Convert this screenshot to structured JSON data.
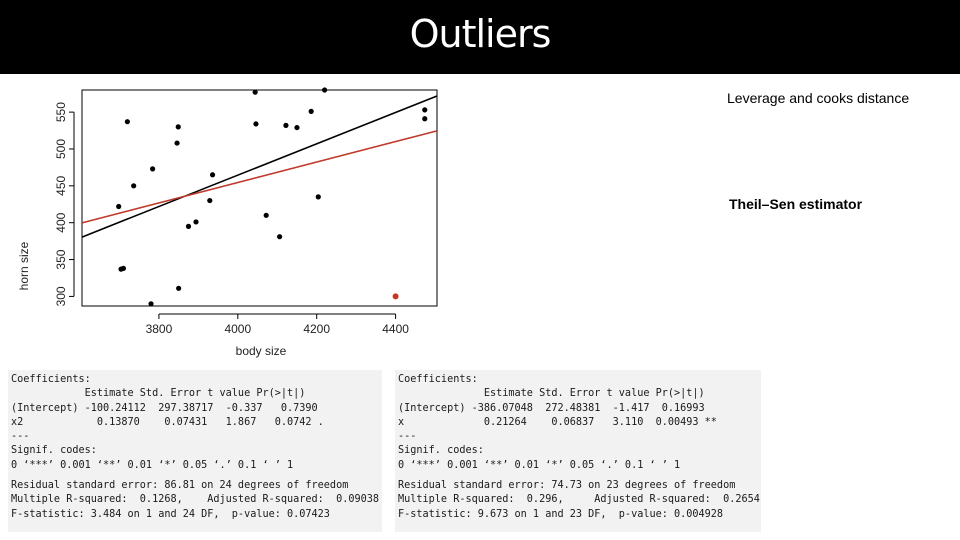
{
  "slide": {
    "title": "Outliers",
    "notes": [
      "Leverage and cooks distance",
      "Theil–Sen estimator"
    ]
  },
  "colors": {
    "points": "#000000",
    "outlier": "#cc3322",
    "ols_line": "#000000",
    "robust_line": "#c0392b",
    "title_bar": "#000000"
  },
  "chart_data": {
    "type": "scatter",
    "title": "",
    "xlabel": "body size",
    "ylabel": "horn size",
    "xlim": [
      3605,
      4505
    ],
    "ylim": [
      287,
      580
    ],
    "xticks": [
      3800,
      4000,
      4200,
      4400
    ],
    "yticks": [
      300,
      350,
      400,
      450,
      500,
      550
    ],
    "grid": false,
    "points": [
      {
        "x": 3698,
        "y": 422
      },
      {
        "x": 3704,
        "y": 337
      },
      {
        "x": 3710,
        "y": 338
      },
      {
        "x": 3720,
        "y": 537
      },
      {
        "x": 3736,
        "y": 450
      },
      {
        "x": 3780,
        "y": 290
      },
      {
        "x": 3784,
        "y": 473
      },
      {
        "x": 3846,
        "y": 508
      },
      {
        "x": 3849,
        "y": 530
      },
      {
        "x": 3850,
        "y": 311
      },
      {
        "x": 3875,
        "y": 395
      },
      {
        "x": 3894,
        "y": 401
      },
      {
        "x": 3929,
        "y": 430
      },
      {
        "x": 3936,
        "y": 465
      },
      {
        "x": 4044,
        "y": 577
      },
      {
        "x": 4046,
        "y": 534
      },
      {
        "x": 4072,
        "y": 410
      },
      {
        "x": 4106,
        "y": 381
      },
      {
        "x": 4122,
        "y": 532
      },
      {
        "x": 4150,
        "y": 529
      },
      {
        "x": 4186,
        "y": 551
      },
      {
        "x": 4204,
        "y": 435
      },
      {
        "x": 4220,
        "y": 580
      },
      {
        "x": 4474,
        "y": 553
      },
      {
        "x": 4474,
        "y": 541
      }
    ],
    "outliers": [
      {
        "x": 4400,
        "y": 300
      }
    ],
    "lines": [
      {
        "kind": "ols",
        "intercept": -386.07048,
        "slope": 0.21264
      },
      {
        "kind": "robust",
        "intercept": -100.24112,
        "slope": 0.1387
      }
    ]
  },
  "regression_left": {
    "lines": [
      "Coefficients:",
      "            Estimate Std. Error t value Pr(>|t|)",
      "(Intercept) -100.24112  297.38717  -0.337   0.7390",
      "x2            0.13870    0.07431   1.867   0.0742 .",
      "---",
      "Signif. codes:",
      "0 ‘***’ 0.001 ‘**’ 0.01 ‘*’ 0.05 ‘.’ 0.1 ‘ ’ 1",
      "",
      "Residual standard error: 86.81 on 24 degrees of freedom",
      "Multiple R-squared:  0.1268,    Adjusted R-squared:  0.09038",
      "F-statistic: 3.484 on 1 and 24 DF,  p-value: 0.07423"
    ]
  },
  "regression_right": {
    "lines": [
      "Coefficients:",
      "              Estimate Std. Error t value Pr(>|t|)",
      "(Intercept) -386.07048  272.48381  -1.417  0.16993",
      "x             0.21264    0.06837   3.110  0.00493 **",
      "---",
      "Signif. codes:",
      "0 ‘***’ 0.001 ‘**’ 0.01 ‘*’ 0.05 ‘.’ 0.1 ‘ ’ 1",
      "",
      "Residual standard error: 74.73 on 23 degrees of freedom",
      "Multiple R-squared:  0.296,     Adjusted R-squared:  0.2654",
      "F-statistic: 9.673 on 1 and 23 DF,  p-value: 0.004928"
    ]
  }
}
